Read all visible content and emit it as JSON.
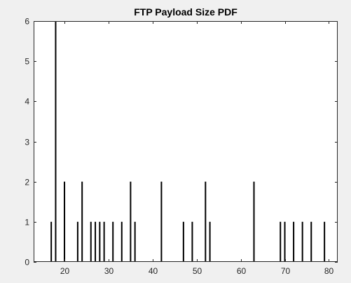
{
  "chart_data": {
    "type": "bar",
    "title": "FTP Payload Size PDF",
    "xlabel": "",
    "ylabel": "",
    "xlim": [
      13,
      82
    ],
    "ylim": [
      0,
      6
    ],
    "grid": false,
    "xticks": [
      20,
      30,
      40,
      50,
      60,
      70,
      80
    ],
    "yticks": [
      0,
      1,
      2,
      3,
      4,
      5,
      6
    ],
    "series": [
      {
        "x": [
          17,
          18,
          20,
          23,
          24,
          26,
          27,
          28,
          29,
          31,
          33,
          35,
          36,
          42,
          47,
          49,
          52,
          53,
          63,
          69,
          70,
          72,
          74,
          76,
          79
        ],
        "values": [
          1,
          6,
          2,
          1,
          2,
          1,
          1,
          1,
          1,
          1,
          1,
          2,
          1,
          2,
          1,
          1,
          2,
          1,
          2,
          1,
          1,
          1,
          1,
          1,
          1
        ]
      }
    ],
    "colors": {
      "bar": "#000000",
      "axes_background": "#ffffff",
      "figure_background": "#f0f0f0",
      "axis_line": "#262626"
    }
  }
}
